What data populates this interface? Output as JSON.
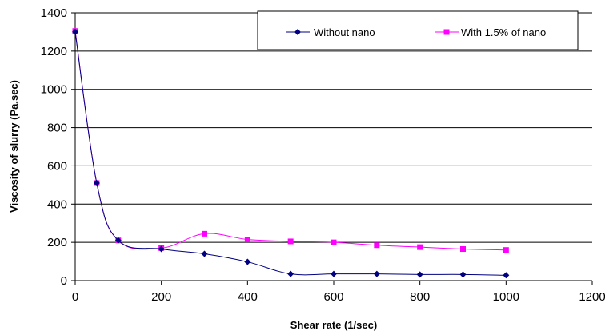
{
  "chart_data": {
    "type": "line",
    "title": "",
    "xlabel": "Shear rate (1/sec)",
    "ylabel": "Viscosity of slurry (Pa.sec)",
    "xlim": [
      0,
      1200
    ],
    "ylim": [
      0,
      1400
    ],
    "x_ticks": [
      0,
      200,
      400,
      600,
      800,
      1000,
      1200
    ],
    "y_ticks": [
      0,
      200,
      400,
      600,
      800,
      1000,
      1200,
      1400
    ],
    "x_tick_labels": [
      "0",
      "200",
      "400",
      "600",
      "800",
      "1000",
      "1200"
    ],
    "y_tick_labels": [
      "0",
      "200",
      "400",
      "600",
      "800",
      "1000",
      "1200",
      "1400"
    ],
    "grid": {
      "horizontal": true,
      "vertical": false
    },
    "legend_position": "top-right",
    "series": [
      {
        "name": "Without nano",
        "color": "#000080",
        "marker": "diamond",
        "x": [
          0,
          50,
          100,
          200,
          300,
          400,
          500,
          600,
          700,
          800,
          900,
          1000
        ],
        "values": [
          1300,
          510,
          210,
          165,
          140,
          98,
          35,
          35,
          35,
          32,
          32,
          28
        ]
      },
      {
        "name": "With 1.5% of nano",
        "color": "#ff00ff",
        "marker": "square",
        "x": [
          0,
          50,
          100,
          200,
          300,
          400,
          500,
          600,
          700,
          800,
          900,
          1000
        ],
        "values": [
          1305,
          510,
          210,
          170,
          245,
          215,
          205,
          200,
          185,
          175,
          165,
          160
        ]
      }
    ]
  }
}
